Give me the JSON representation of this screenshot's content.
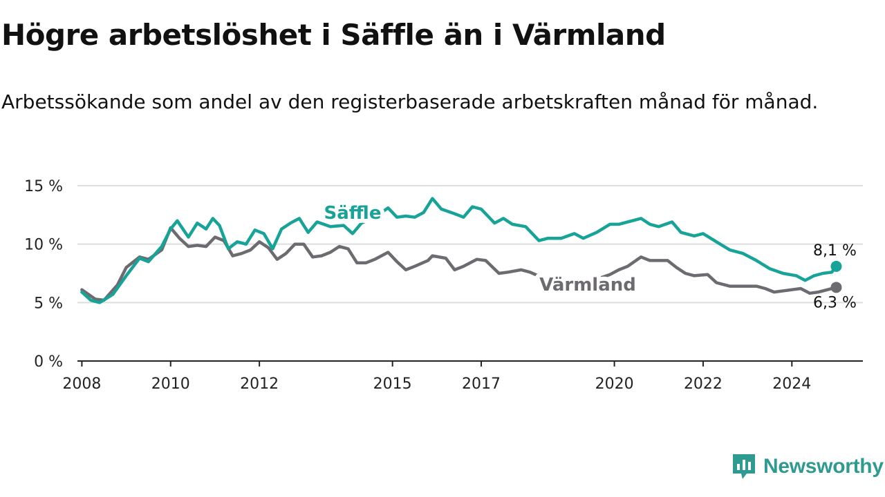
{
  "title": "Högre arbetslöshet i Säffle än i Värmland",
  "subtitle": "Arbetssökande som andel av den registerbaserade arbetskraften månad för månad.",
  "brand": "Newsworthy",
  "colors": {
    "saffle": "#17a398",
    "varmland": "#6d6b70",
    "brand": "#2f9a90",
    "grid": "#dddddd",
    "axis": "#222222"
  },
  "chart_data": {
    "type": "line",
    "ylim": [
      0,
      15
    ],
    "yticks": [
      0,
      5,
      10,
      15
    ],
    "ytick_labels": [
      "0 %",
      "5 %",
      "10 %",
      "15 %"
    ],
    "xticks": [
      2008,
      2010,
      2012,
      2015,
      2017,
      2020,
      2022,
      2024
    ],
    "xlim": [
      2007.9,
      2025.6
    ],
    "grid": true,
    "series": [
      {
        "name": "Säffle",
        "color": "#17a398",
        "end_label": "8,1 %",
        "data": [
          [
            2008.0,
            5.9
          ],
          [
            2008.2,
            5.2
          ],
          [
            2008.4,
            5.0
          ],
          [
            2008.7,
            5.7
          ],
          [
            2009.0,
            7.3
          ],
          [
            2009.3,
            8.8
          ],
          [
            2009.5,
            8.5
          ],
          [
            2009.8,
            9.8
          ],
          [
            2010.0,
            11.3
          ],
          [
            2010.15,
            12.0
          ],
          [
            2010.4,
            10.6
          ],
          [
            2010.6,
            11.8
          ],
          [
            2010.8,
            11.3
          ],
          [
            2010.95,
            12.2
          ],
          [
            2011.1,
            11.6
          ],
          [
            2011.3,
            9.6
          ],
          [
            2011.5,
            10.2
          ],
          [
            2011.7,
            10.0
          ],
          [
            2011.9,
            11.2
          ],
          [
            2012.1,
            10.9
          ],
          [
            2012.3,
            9.6
          ],
          [
            2012.5,
            11.3
          ],
          [
            2012.7,
            11.8
          ],
          [
            2012.9,
            12.2
          ],
          [
            2013.1,
            11.0
          ],
          [
            2013.3,
            11.9
          ],
          [
            2013.6,
            11.5
          ],
          [
            2013.9,
            11.6
          ],
          [
            2014.1,
            10.9
          ],
          [
            2014.3,
            11.8
          ],
          [
            2014.6,
            12.3
          ],
          [
            2014.9,
            13.1
          ],
          [
            2015.1,
            12.3
          ],
          [
            2015.3,
            12.4
          ],
          [
            2015.5,
            12.3
          ],
          [
            2015.7,
            12.7
          ],
          [
            2015.9,
            13.9
          ],
          [
            2016.1,
            13.0
          ],
          [
            2016.4,
            12.6
          ],
          [
            2016.6,
            12.3
          ],
          [
            2016.8,
            13.2
          ],
          [
            2017.0,
            13.0
          ],
          [
            2017.3,
            11.8
          ],
          [
            2017.5,
            12.2
          ],
          [
            2017.7,
            11.7
          ],
          [
            2018.0,
            11.5
          ],
          [
            2018.3,
            10.3
          ],
          [
            2018.5,
            10.5
          ],
          [
            2018.8,
            10.5
          ],
          [
            2019.1,
            10.9
          ],
          [
            2019.3,
            10.5
          ],
          [
            2019.6,
            11.0
          ],
          [
            2019.9,
            11.7
          ],
          [
            2020.1,
            11.7
          ],
          [
            2020.4,
            12.0
          ],
          [
            2020.6,
            12.2
          ],
          [
            2020.8,
            11.7
          ],
          [
            2021.0,
            11.5
          ],
          [
            2021.3,
            11.9
          ],
          [
            2021.5,
            11.0
          ],
          [
            2021.8,
            10.7
          ],
          [
            2022.0,
            10.9
          ],
          [
            2022.3,
            10.2
          ],
          [
            2022.6,
            9.5
          ],
          [
            2022.9,
            9.2
          ],
          [
            2023.2,
            8.6
          ],
          [
            2023.5,
            7.9
          ],
          [
            2023.8,
            7.5
          ],
          [
            2024.1,
            7.3
          ],
          [
            2024.3,
            6.9
          ],
          [
            2024.5,
            7.3
          ],
          [
            2024.7,
            7.5
          ],
          [
            2024.9,
            7.6
          ],
          [
            2025.0,
            8.1
          ]
        ]
      },
      {
        "name": "Värmland",
        "color": "#6d6b70",
        "end_label": "6,3 %",
        "data": [
          [
            2008.0,
            6.1
          ],
          [
            2008.3,
            5.3
          ],
          [
            2008.5,
            5.2
          ],
          [
            2008.8,
            6.5
          ],
          [
            2009.0,
            8.0
          ],
          [
            2009.3,
            8.9
          ],
          [
            2009.5,
            8.7
          ],
          [
            2009.8,
            9.5
          ],
          [
            2010.0,
            11.4
          ],
          [
            2010.2,
            10.5
          ],
          [
            2010.4,
            9.8
          ],
          [
            2010.6,
            9.9
          ],
          [
            2010.8,
            9.8
          ],
          [
            2011.0,
            10.6
          ],
          [
            2011.2,
            10.3
          ],
          [
            2011.4,
            9.0
          ],
          [
            2011.6,
            9.2
          ],
          [
            2011.8,
            9.5
          ],
          [
            2012.0,
            10.2
          ],
          [
            2012.2,
            9.7
          ],
          [
            2012.4,
            8.7
          ],
          [
            2012.6,
            9.2
          ],
          [
            2012.8,
            10.0
          ],
          [
            2013.0,
            10.0
          ],
          [
            2013.2,
            8.9
          ],
          [
            2013.4,
            9.0
          ],
          [
            2013.6,
            9.3
          ],
          [
            2013.8,
            9.8
          ],
          [
            2014.0,
            9.6
          ],
          [
            2014.2,
            8.4
          ],
          [
            2014.4,
            8.4
          ],
          [
            2014.6,
            8.7
          ],
          [
            2014.9,
            9.3
          ],
          [
            2015.1,
            8.5
          ],
          [
            2015.3,
            7.8
          ],
          [
            2015.5,
            8.1
          ],
          [
            2015.8,
            8.6
          ],
          [
            2015.9,
            9.0
          ],
          [
            2016.2,
            8.8
          ],
          [
            2016.4,
            7.8
          ],
          [
            2016.6,
            8.1
          ],
          [
            2016.9,
            8.7
          ],
          [
            2017.1,
            8.6
          ],
          [
            2017.4,
            7.5
          ],
          [
            2017.6,
            7.6
          ],
          [
            2017.9,
            7.8
          ],
          [
            2018.1,
            7.6
          ],
          [
            2018.4,
            7.1
          ],
          [
            2018.8,
            6.9
          ],
          [
            2019.2,
            6.9
          ],
          [
            2019.6,
            7.0
          ],
          [
            2019.9,
            7.4
          ],
          [
            2020.1,
            7.8
          ],
          [
            2020.3,
            8.1
          ],
          [
            2020.6,
            8.9
          ],
          [
            2020.8,
            8.6
          ],
          [
            2021.0,
            8.6
          ],
          [
            2021.2,
            8.6
          ],
          [
            2021.4,
            8.0
          ],
          [
            2021.6,
            7.5
          ],
          [
            2021.8,
            7.3
          ],
          [
            2022.1,
            7.4
          ],
          [
            2022.3,
            6.7
          ],
          [
            2022.6,
            6.4
          ],
          [
            2022.9,
            6.4
          ],
          [
            2023.2,
            6.4
          ],
          [
            2023.4,
            6.2
          ],
          [
            2023.6,
            5.9
          ],
          [
            2024.0,
            6.1
          ],
          [
            2024.2,
            6.2
          ],
          [
            2024.4,
            5.8
          ],
          [
            2024.6,
            5.9
          ],
          [
            2024.8,
            6.1
          ],
          [
            2025.0,
            6.3
          ]
        ]
      }
    ]
  }
}
